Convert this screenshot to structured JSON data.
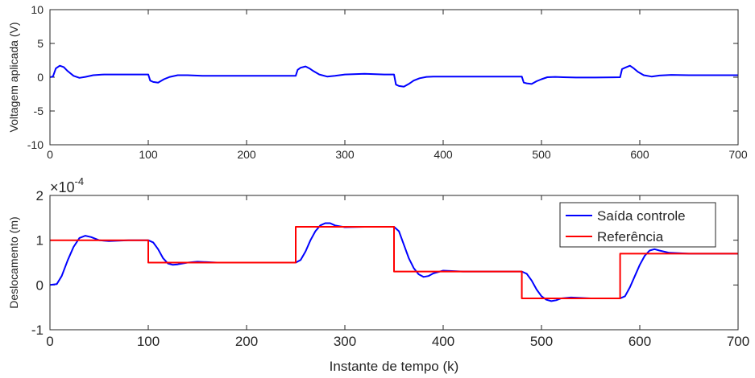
{
  "chart_data": [
    {
      "type": "line",
      "ylabel": "Voltagem aplicada (V)",
      "xlim": [
        0,
        700
      ],
      "ylim": [
        -10,
        10
      ],
      "xticks": [
        0,
        100,
        200,
        300,
        400,
        500,
        600,
        700
      ],
      "yticks": [
        -10,
        -5,
        0,
        5,
        10
      ],
      "grid": false,
      "series": [
        {
          "color": "#0000ff",
          "x": [
            0,
            3,
            6,
            10,
            14,
            18,
            24,
            30,
            36,
            44,
            55,
            70,
            85,
            100,
            102,
            105,
            110,
            116,
            122,
            130,
            140,
            155,
            180,
            220,
            250,
            252,
            255,
            260,
            264,
            268,
            274,
            282,
            290,
            300,
            320,
            340,
            350,
            352,
            355,
            360,
            365,
            370,
            376,
            383,
            390,
            400,
            420,
            450,
            480,
            482,
            485,
            490,
            495,
            500,
            506,
            514,
            522,
            535,
            555,
            580,
            582,
            585,
            590,
            594,
            598,
            604,
            612,
            620,
            632,
            650,
            680,
            700
          ],
          "y": [
            0,
            0.1,
            1.3,
            1.7,
            1.5,
            0.9,
            0.2,
            -0.1,
            0.05,
            0.3,
            0.4,
            0.4,
            0.4,
            0.4,
            -0.5,
            -0.7,
            -0.8,
            -0.3,
            0.05,
            0.3,
            0.3,
            0.2,
            0.2,
            0.2,
            0.2,
            1.1,
            1.4,
            1.6,
            1.3,
            0.9,
            0.4,
            0.1,
            0.2,
            0.4,
            0.5,
            0.4,
            0.4,
            -1.1,
            -1.3,
            -1.4,
            -1.0,
            -0.5,
            -0.15,
            0.05,
            0.1,
            0.1,
            0.1,
            0.1,
            0.1,
            -0.8,
            -0.9,
            -1.0,
            -0.6,
            -0.3,
            0.0,
            0.05,
            0.0,
            -0.05,
            -0.05,
            0.0,
            1.2,
            1.4,
            1.7,
            1.3,
            0.8,
            0.3,
            0.1,
            0.25,
            0.35,
            0.3,
            0.3,
            0.3
          ]
        }
      ]
    },
    {
      "type": "line",
      "xlabel": "Instante de tempo (k)",
      "ylabel": "Deslocamento (m)",
      "exponent_label": "×10",
      "exponent_power": "-4",
      "xlim": [
        0,
        700
      ],
      "ylim": [
        -1,
        2
      ],
      "xticks": [
        0,
        100,
        200,
        300,
        400,
        500,
        600,
        700
      ],
      "yticks": [
        -1,
        0,
        1,
        2
      ],
      "grid": false,
      "legend_position": "top-right",
      "series": [
        {
          "name": "Saída controle",
          "color": "#0000ff",
          "x": [
            0,
            7,
            12,
            18,
            24,
            30,
            36,
            42,
            50,
            60,
            80,
            100,
            105,
            110,
            115,
            120,
            125,
            130,
            140,
            150,
            170,
            200,
            250,
            255,
            260,
            265,
            270,
            275,
            280,
            285,
            290,
            300,
            320,
            350,
            355,
            360,
            365,
            370,
            375,
            380,
            385,
            390,
            400,
            420,
            450,
            480,
            485,
            490,
            495,
            500,
            505,
            510,
            515,
            520,
            530,
            550,
            580,
            585,
            590,
            595,
            600,
            605,
            610,
            615,
            620,
            630,
            650,
            700
          ],
          "y": [
            0,
            0.02,
            0.2,
            0.55,
            0.85,
            1.05,
            1.1,
            1.07,
            1.0,
            0.98,
            1.0,
            1.0,
            0.95,
            0.8,
            0.6,
            0.48,
            0.45,
            0.46,
            0.5,
            0.52,
            0.5,
            0.5,
            0.5,
            0.56,
            0.75,
            1.0,
            1.2,
            1.33,
            1.38,
            1.38,
            1.33,
            1.29,
            1.3,
            1.3,
            1.2,
            0.9,
            0.6,
            0.38,
            0.24,
            0.18,
            0.2,
            0.26,
            0.32,
            0.3,
            0.3,
            0.3,
            0.25,
            0.1,
            -0.1,
            -0.25,
            -0.33,
            -0.36,
            -0.34,
            -0.3,
            -0.28,
            -0.3,
            -0.3,
            -0.25,
            -0.05,
            0.2,
            0.45,
            0.65,
            0.77,
            0.8,
            0.77,
            0.72,
            0.7,
            0.7
          ]
        },
        {
          "name": "Referência",
          "color": "#ff0000",
          "x": [
            0,
            100,
            100,
            250,
            250,
            350,
            350,
            480,
            480,
            580,
            580,
            700
          ],
          "y": [
            1.0,
            1.0,
            0.5,
            0.5,
            1.3,
            1.3,
            0.3,
            0.3,
            -0.3,
            -0.3,
            0.7,
            0.7
          ]
        }
      ]
    }
  ]
}
